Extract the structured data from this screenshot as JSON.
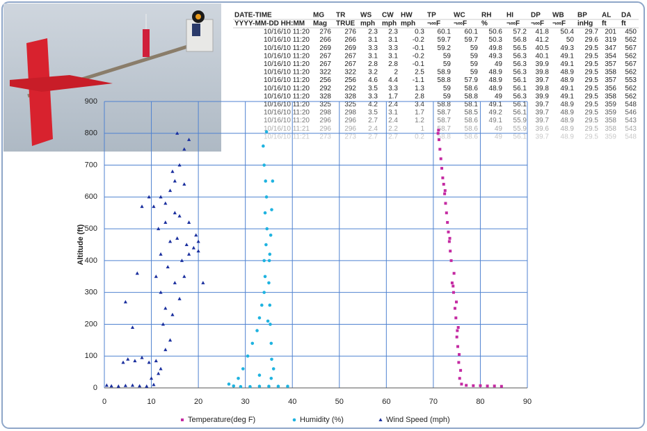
{
  "chart_data": {
    "type": "scatter",
    "y_label": "Altitude (ft)",
    "xlim": [
      0,
      90
    ],
    "xticks": [
      0,
      10,
      20,
      30,
      40,
      50,
      60,
      70,
      80,
      90
    ],
    "ylim": [
      0,
      900
    ],
    "yticks": [
      0,
      100,
      200,
      300,
      400,
      500,
      600,
      700,
      800,
      900
    ],
    "grid": true,
    "legend": "bottom",
    "series": [
      {
        "name": "Temperature(deg F)",
        "color": "#c42aa2",
        "marker": "square",
        "x": [
          84.5,
          83,
          81.5,
          80,
          78.5,
          77,
          76,
          75.6,
          75.8,
          75.4,
          75.5,
          75.2,
          75,
          75.3,
          74.8,
          74.6,
          74.9,
          74.3,
          74,
          74.4,
          73.8,
          73.6,
          73.4,
          73.2,
          73,
          72.8,
          72.6,
          72.4,
          72.2,
          72,
          71.8,
          71.6,
          71.4,
          71.2,
          71,
          71.1,
          72.5,
          73.5,
          74.2,
          75.1
        ],
        "values": [
          5,
          6,
          6,
          7,
          7,
          8,
          12,
          30,
          55,
          80,
          105,
          130,
          160,
          190,
          220,
          250,
          270,
          300,
          330,
          360,
          400,
          430,
          460,
          490,
          520,
          550,
          580,
          610,
          640,
          660,
          690,
          720,
          750,
          780,
          800,
          810,
          620,
          470,
          320,
          180
        ]
      },
      {
        "name": "Humidity (%)",
        "color": "#1fb3e0",
        "marker": "circle",
        "x": [
          26.5,
          27.5,
          29,
          31,
          33,
          35,
          37,
          39,
          28.5,
          29.5,
          30.5,
          31.5,
          32.5,
          33,
          33.5,
          34,
          34.2,
          34,
          34.4,
          34.6,
          34.2,
          34.5,
          34.3,
          34,
          33.8,
          34.5,
          35.5,
          36,
          35.6,
          35.5,
          35.3,
          35.2,
          35,
          35.1,
          35.4,
          35.6,
          35.8,
          33,
          34.8,
          35.2
        ],
        "values": [
          12,
          6,
          4,
          4,
          5,
          5,
          5,
          5,
          30,
          60,
          100,
          140,
          180,
          220,
          260,
          300,
          350,
          400,
          450,
          500,
          550,
          600,
          650,
          700,
          760,
          805,
          30,
          60,
          90,
          140,
          200,
          260,
          330,
          400,
          480,
          560,
          650,
          40,
          210,
          420
        ]
      },
      {
        "name": "Wind Speed (mph)",
        "color": "#1a2f9e",
        "marker": "triangle",
        "x": [
          0.5,
          1.5,
          3,
          4.5,
          6,
          7.5,
          9,
          10.5,
          4,
          5,
          6.5,
          8,
          9.5,
          11,
          12,
          10,
          11.5,
          13,
          14,
          12.5,
          4.5,
          7,
          6,
          8,
          9.5,
          11,
          13,
          14.5,
          16,
          12,
          15,
          17,
          13.5,
          16.5,
          18,
          19,
          20,
          21,
          12,
          14,
          15.5,
          17.5,
          19.5,
          11.5,
          13,
          15,
          16,
          18,
          20,
          10.5,
          12,
          14,
          15,
          17,
          16,
          17,
          18,
          15.5,
          14.5,
          13
        ],
        "values": [
          8,
          6,
          5,
          7,
          8,
          6,
          5,
          10,
          80,
          90,
          85,
          95,
          80,
          85,
          60,
          30,
          45,
          120,
          150,
          200,
          270,
          360,
          190,
          570,
          600,
          350,
          250,
          230,
          280,
          300,
          330,
          350,
          380,
          400,
          420,
          440,
          430,
          330,
          420,
          460,
          470,
          450,
          480,
          500,
          520,
          550,
          540,
          520,
          460,
          570,
          600,
          620,
          650,
          640,
          700,
          750,
          780,
          800,
          680,
          580
        ]
      }
    ]
  },
  "table": {
    "columns": [
      {
        "name": "DATE-TIME",
        "unit": "YYYY-MM-DD HH:MM"
      },
      {
        "name": "MG",
        "unit": "Mag"
      },
      {
        "name": "TR",
        "unit": "TRUE"
      },
      {
        "name": "WS",
        "unit": "mph"
      },
      {
        "name": "CW",
        "unit": "mph"
      },
      {
        "name": "HW",
        "unit": "mph"
      },
      {
        "name": "TP",
        "unit": "¬∞F"
      },
      {
        "name": "WC",
        "unit": "¬∞F"
      },
      {
        "name": "RH",
        "unit": "%"
      },
      {
        "name": "HI",
        "unit": "¬∞F"
      },
      {
        "name": "DP",
        "unit": "¬∞F"
      },
      {
        "name": "WB",
        "unit": "¬∞F"
      },
      {
        "name": "BP",
        "unit": "inHg"
      },
      {
        "name": "AL",
        "unit": "ft"
      },
      {
        "name": "DA",
        "unit": "ft"
      }
    ],
    "rows": [
      [
        "10/16/10 11:20",
        276,
        276,
        2.3,
        2.3,
        0.3,
        60.1,
        60.1,
        50.6,
        57.2,
        41.8,
        50.4,
        29.7,
        201,
        450
      ],
      [
        "10/16/10 11:20",
        266,
        266,
        3.1,
        3.1,
        -0.2,
        59.7,
        59.7,
        50.3,
        56.8,
        41.2,
        50,
        29.6,
        319,
        562
      ],
      [
        "10/16/10 11:20",
        269,
        269,
        3.3,
        3.3,
        -0.1,
        59.2,
        59,
        49.8,
        56.5,
        40.5,
        49.3,
        29.5,
        347,
        567
      ],
      [
        "10/16/10 11:20",
        267,
        267,
        3.1,
        3.1,
        -0.2,
        59,
        59,
        49.3,
        56.3,
        40.1,
        49.1,
        29.5,
        354,
        562
      ],
      [
        "10/16/10 11:20",
        267,
        267,
        2.8,
        2.8,
        -0.1,
        59,
        59,
        49,
        56.3,
        39.9,
        49.1,
        29.5,
        357,
        567
      ],
      [
        "10/16/10 11:20",
        322,
        322,
        3.2,
        2,
        2.5,
        58.9,
        59,
        48.9,
        56.3,
        39.8,
        48.9,
        29.5,
        358,
        562
      ],
      [
        "10/16/10 11:20",
        256,
        256,
        4.6,
        4.4,
        -1.1,
        58.8,
        57.9,
        48.9,
        56.1,
        39.7,
        48.9,
        29.5,
        357,
        553
      ],
      [
        "10/16/10 11:20",
        292,
        292,
        3.5,
        3.3,
        1.3,
        59,
        58.6,
        48.9,
        56.1,
        39.8,
        49.1,
        29.5,
        356,
        562
      ],
      [
        "10/16/10 11:20",
        328,
        328,
        3.3,
        1.7,
        2.8,
        59,
        58.8,
        49,
        56.3,
        39.9,
        49.1,
        29.5,
        358,
        562
      ],
      [
        "10/16/10 11:20",
        325,
        325,
        4.2,
        2.4,
        3.4,
        58.8,
        58.1,
        49.1,
        56.1,
        39.7,
        48.9,
        29.5,
        359,
        548
      ],
      [
        "10/16/10 11:20",
        298,
        298,
        3.5,
        3.1,
        1.7,
        58.7,
        58.5,
        49.2,
        56.1,
        39.7,
        48.9,
        29.5,
        359,
        546
      ],
      [
        "10/16/10 11:20",
        296,
        296,
        2.7,
        2.4,
        1.2,
        58.7,
        58.6,
        49.1,
        55.9,
        39.7,
        48.9,
        29.5,
        358,
        543
      ],
      [
        "10/16/10 11:21",
        296,
        296,
        2.4,
        2.2,
        1,
        58.7,
        58.6,
        49,
        55.9,
        39.6,
        48.9,
        29.5,
        358,
        543
      ],
      [
        "10/16/10 11:21",
        273,
        273,
        2.7,
        2.7,
        0.2,
        58.8,
        58.6,
        49,
        56.1,
        39.7,
        48.9,
        29.5,
        359,
        548
      ]
    ]
  }
}
